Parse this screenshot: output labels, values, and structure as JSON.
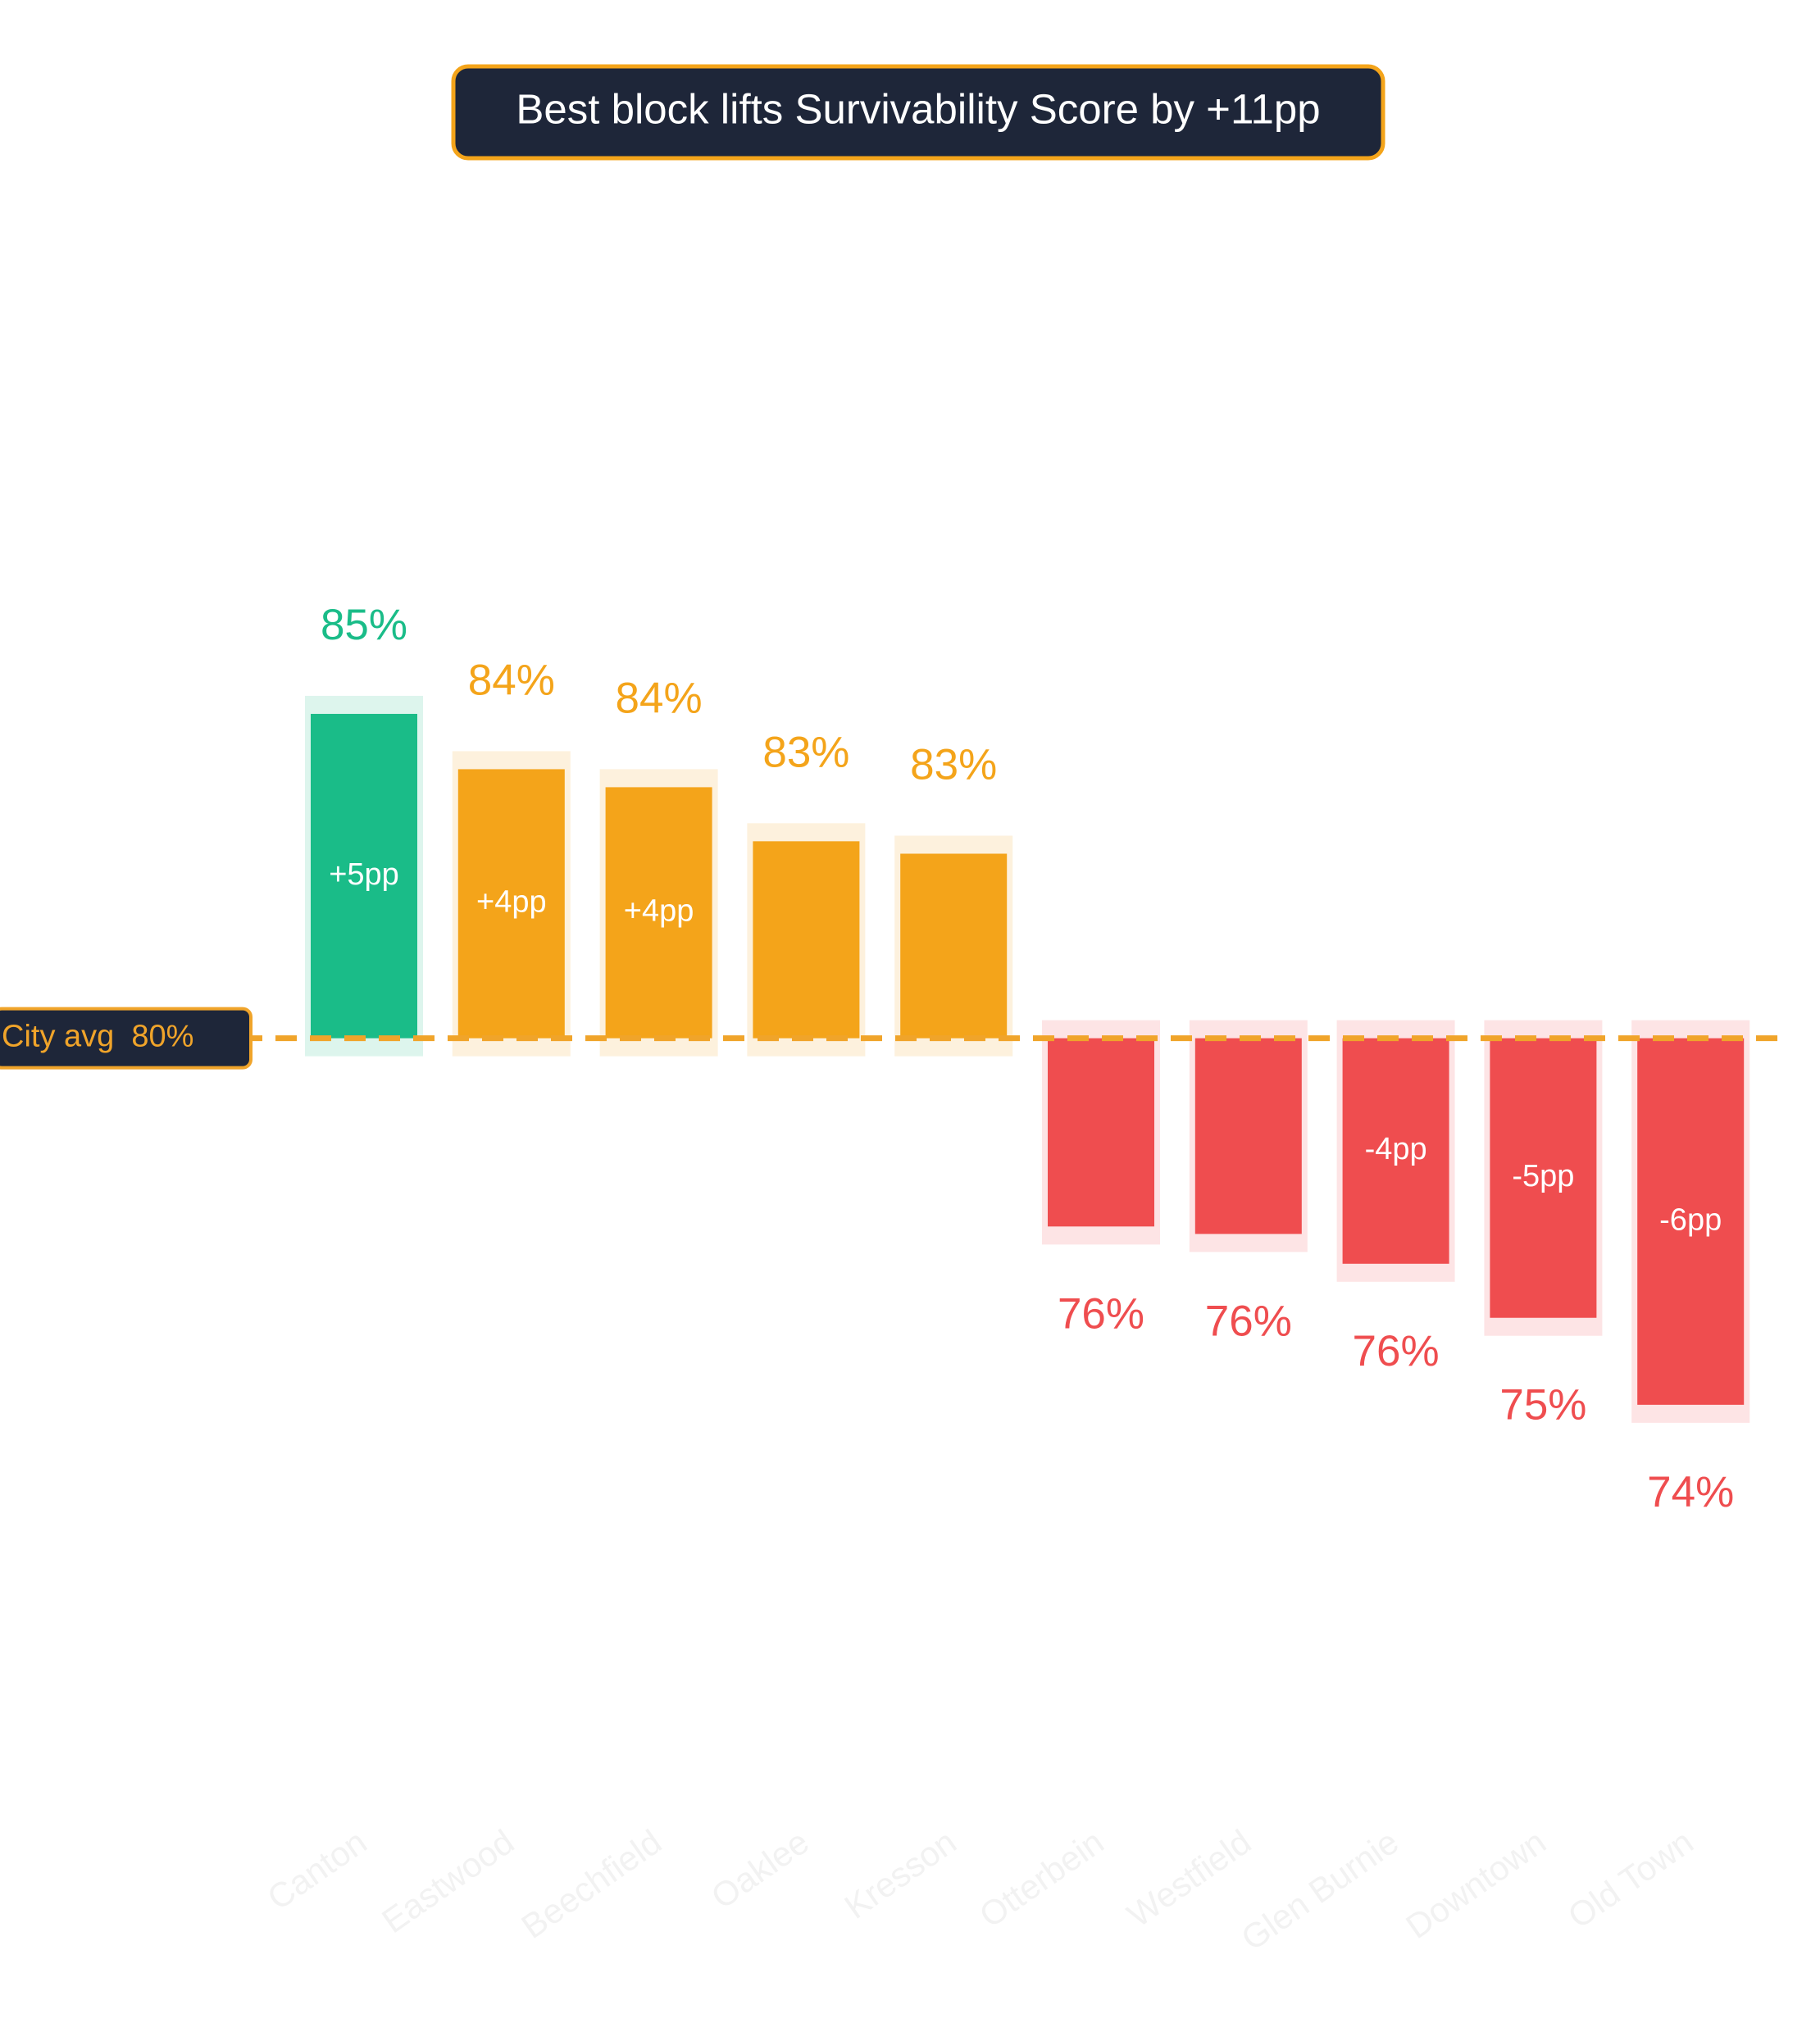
{
  "chart_data": {
    "type": "bar",
    "title": "Best block lifts Survivability Score by +11pp",
    "categories": [
      "Canton",
      "Eastwood",
      "Beechfield",
      "Oaklee",
      "Kresson",
      "Otterbein",
      "Westfield",
      "Glen Burnie",
      "Downtown",
      "Old Town"
    ],
    "values": [
      84.75,
      83.86,
      83.57,
      82.7,
      82.5,
      76.5,
      76.38,
      75.9,
      75.03,
      73.63
    ],
    "value_labels": [
      "85%",
      "84%",
      "84%",
      "83%",
      "83%",
      "76%",
      "76%",
      "76%",
      "75%",
      "74%"
    ],
    "delta_labels": [
      "+5pp",
      "+4pp",
      "+4pp",
      null,
      null,
      null,
      null,
      "-4pp",
      "-5pp",
      "-6pp"
    ],
    "colors": [
      "#1abc88",
      "#f4a41a",
      "#f4a41a",
      "#f4a41a",
      "#f4a41a",
      "#ef4d4f",
      "#ef4d4f",
      "#ef4d4f",
      "#ef4d4f",
      "#ef4d4f"
    ],
    "reference_line": {
      "value": 79.53,
      "label": "City avg  80%",
      "color": "#f0a42a"
    },
    "ylim": [
      65,
      90
    ]
  }
}
